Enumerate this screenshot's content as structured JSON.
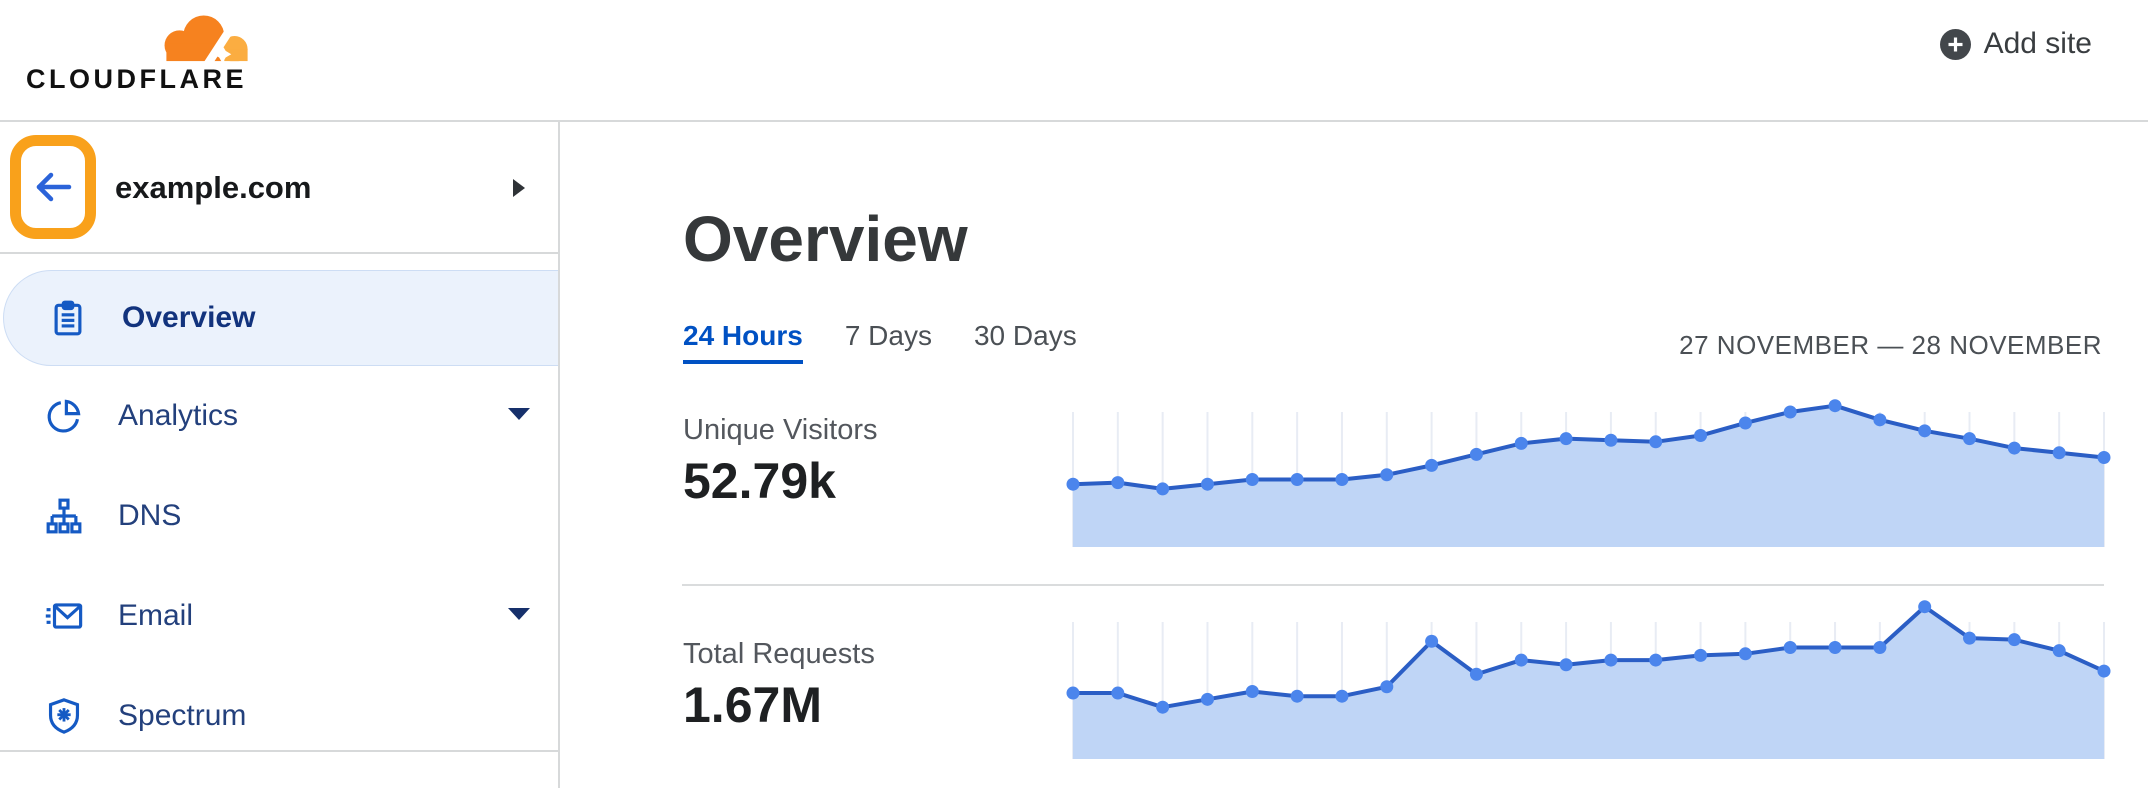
{
  "header": {
    "logo_text": "CLOUDFLARE",
    "add_site_label": "Add site"
  },
  "sidebar": {
    "site_name": "example.com",
    "back_button": {
      "icon": "arrow-left-icon",
      "annotated": true,
      "annotation_color": "#F9A11B"
    },
    "items": [
      {
        "label": "Overview",
        "icon": "clipboard-icon",
        "selected": true,
        "expandable": false
      },
      {
        "label": "Analytics",
        "icon": "pie-chart-icon",
        "selected": false,
        "expandable": true
      },
      {
        "label": "DNS",
        "icon": "sitemap-icon",
        "selected": false,
        "expandable": false
      },
      {
        "label": "Email",
        "icon": "email-icon",
        "selected": false,
        "expandable": true
      },
      {
        "label": "Spectrum",
        "icon": "shield-icon",
        "selected": false,
        "expandable": false
      }
    ]
  },
  "main": {
    "title": "Overview",
    "tabs": [
      {
        "label": "24 Hours",
        "active": true
      },
      {
        "label": "7 Days",
        "active": false
      },
      {
        "label": "30 Days",
        "active": false
      }
    ],
    "date_range": "27 NOVEMBER — 28 NOVEMBER"
  },
  "colors": {
    "brand_orange": "#F6821F",
    "brand_orange_light": "#FBAD41",
    "annotation_orange": "#F9A11B",
    "link_blue": "#0051c3",
    "nav_text_blue": "#23407c",
    "nav_selected_bg": "#ebf2fc",
    "chart_line": "#2b5ec5",
    "chart_dot": "#4b85ec",
    "chart_fill": "#bfd5f6",
    "chart_grid": "#e8ecf4"
  },
  "chart_data": [
    {
      "type": "area",
      "title": "Unique Visitors",
      "total_label": "52.79k",
      "x_description": "24 hourly points, 27 November — 28 November (axis unlabeled)",
      "values": [
        40,
        41,
        37,
        40,
        43,
        43,
        43,
        46,
        52,
        59,
        66,
        69,
        68,
        67,
        71,
        79,
        86,
        90,
        81,
        74,
        69,
        63,
        60,
        57
      ],
      "y_description": "relative visitors per hour (no axis labels shown)",
      "grid": "vertical-only",
      "legend": "none",
      "line_color": "#2b5ec5",
      "dot_color": "#4b85ec",
      "fill_color": "#bfd5f6",
      "grid_color": "#e8ecf4"
    },
    {
      "type": "area",
      "title": "Total Requests",
      "total_label": "1.67M",
      "x_description": "24 hourly points, 27 November — 28 November (axis unlabeled)",
      "values": [
        42,
        42,
        33,
        38,
        43,
        40,
        40,
        46,
        75,
        54,
        63,
        60,
        63,
        63,
        66,
        67,
        71,
        71,
        71,
        97,
        77,
        76,
        69,
        56
      ],
      "y_description": "relative requests per hour (no axis labels shown)",
      "grid": "vertical-only",
      "legend": "none",
      "line_color": "#2b5ec5",
      "dot_color": "#4b85ec",
      "fill_color": "#bfd5f6",
      "grid_color": "#e8ecf4"
    }
  ]
}
